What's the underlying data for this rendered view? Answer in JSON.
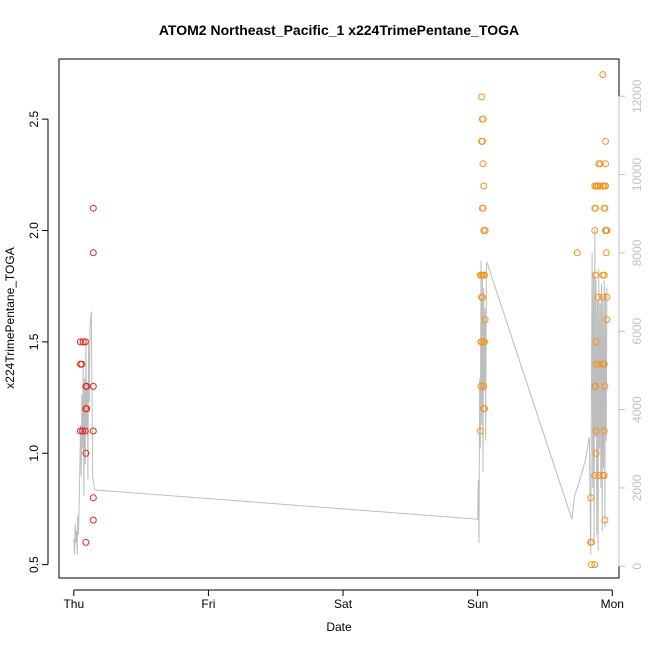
{
  "chart_data": {
    "type": "scatter",
    "title": "ATOM2 Northeast_Pacific_1 x224TrimePentane_TOGA",
    "xlabel": "Date",
    "ylabel": "x224TrimePentane_TOGA",
    "x_ticks": [
      "Thu",
      "Fri",
      "Sat",
      "Sun",
      "Mon"
    ],
    "y_ticks": [
      "0.5",
      "1.0",
      "1.5",
      "2.0",
      "2.5"
    ],
    "y2_ticks": [
      "0",
      "2000",
      "4000",
      "6000",
      "8000",
      "10000",
      "12000"
    ],
    "xlim": [
      -0.11,
      4.05
    ],
    "ylim": [
      0.44,
      2.77
    ],
    "y2lim": [
      -300,
      12950
    ],
    "grid": false,
    "colors": {
      "red": "#e8251f",
      "orange": "#f5921b",
      "line": "#bdbdbd"
    },
    "series": [
      {
        "color": "red",
        "points": [
          [
            0.05,
            1.5
          ],
          [
            0.07,
            1.5
          ],
          [
            0.05,
            1.4
          ],
          [
            0.06,
            1.4
          ],
          [
            0.05,
            1.1
          ],
          [
            0.065,
            1.1
          ],
          [
            0.085,
            1.1
          ],
          [
            0.09,
            1.3
          ],
          [
            0.095,
            1.3
          ],
          [
            0.09,
            1.2
          ],
          [
            0.095,
            1.2
          ],
          [
            0.09,
            1.0
          ],
          [
            0.09,
            0.6
          ],
          [
            0.085,
            1.5
          ],
          [
            0.145,
            2.1
          ],
          [
            0.145,
            1.9
          ],
          [
            0.145,
            1.3
          ],
          [
            0.145,
            1.1
          ],
          [
            0.145,
            0.8
          ],
          [
            0.145,
            0.7
          ]
        ]
      },
      {
        "color": "orange",
        "points": [
          [
            3.03,
            2.6
          ],
          [
            3.035,
            2.5
          ],
          [
            3.04,
            2.5
          ],
          [
            3.03,
            2.4
          ],
          [
            3.035,
            2.4
          ],
          [
            3.04,
            2.3
          ],
          [
            3.045,
            2.2
          ],
          [
            3.035,
            2.1
          ],
          [
            3.04,
            2.1
          ],
          [
            3.045,
            2.0
          ],
          [
            3.055,
            2.0
          ],
          [
            3.02,
            1.8
          ],
          [
            3.03,
            1.8
          ],
          [
            3.04,
            1.8
          ],
          [
            3.05,
            1.8
          ],
          [
            3.03,
            1.7
          ],
          [
            3.035,
            1.7
          ],
          [
            3.055,
            1.6
          ],
          [
            3.025,
            1.5
          ],
          [
            3.03,
            1.5
          ],
          [
            3.045,
            1.5
          ],
          [
            3.05,
            1.5
          ],
          [
            3.025,
            1.3
          ],
          [
            3.045,
            1.3
          ],
          [
            3.045,
            1.2
          ],
          [
            3.05,
            1.2
          ],
          [
            3.02,
            1.1
          ],
          [
            3.74,
            1.9
          ],
          [
            3.84,
            0.8
          ],
          [
            3.84,
            0.6
          ],
          [
            3.845,
            0.6
          ],
          [
            3.845,
            0.5
          ],
          [
            3.87,
            0.5
          ],
          [
            3.87,
            2.2
          ],
          [
            3.88,
            2.2
          ],
          [
            3.89,
            2.2
          ],
          [
            3.895,
            2.2
          ],
          [
            3.91,
            2.2
          ],
          [
            3.93,
            2.2
          ],
          [
            3.94,
            2.2
          ],
          [
            3.95,
            2.2
          ],
          [
            3.9,
            2.3
          ],
          [
            3.91,
            2.3
          ],
          [
            3.95,
            2.3
          ],
          [
            3.95,
            2.4
          ],
          [
            3.93,
            2.7
          ],
          [
            3.87,
            2.1
          ],
          [
            3.875,
            2.1
          ],
          [
            3.94,
            2.1
          ],
          [
            3.945,
            2.1
          ],
          [
            3.87,
            2.0
          ],
          [
            3.95,
            2.0
          ],
          [
            3.955,
            2.0
          ],
          [
            3.96,
            2.0
          ],
          [
            3.955,
            1.9
          ],
          [
            3.875,
            1.8
          ],
          [
            3.93,
            1.8
          ],
          [
            3.94,
            1.8
          ],
          [
            3.895,
            1.7
          ],
          [
            3.93,
            1.7
          ],
          [
            3.96,
            1.7
          ],
          [
            3.96,
            1.6
          ],
          [
            3.88,
            1.5
          ],
          [
            3.88,
            1.4
          ],
          [
            3.9,
            1.4
          ],
          [
            3.93,
            1.4
          ],
          [
            3.94,
            1.4
          ],
          [
            3.87,
            1.3
          ],
          [
            3.875,
            1.3
          ],
          [
            3.945,
            1.3
          ],
          [
            3.88,
            1.1
          ],
          [
            3.94,
            1.1
          ],
          [
            3.88,
            1.0
          ],
          [
            3.87,
            0.9
          ],
          [
            3.9,
            0.9
          ],
          [
            3.93,
            0.9
          ],
          [
            3.94,
            0.9
          ],
          [
            3.945,
            0.7
          ]
        ]
      }
    ],
    "right_axis_line": [
      [
        0.0,
        700
      ],
      [
        0.005,
        300
      ],
      [
        0.01,
        1100
      ],
      [
        0.015,
        600
      ],
      [
        0.02,
        900
      ],
      [
        0.025,
        300
      ],
      [
        0.03,
        1300
      ],
      [
        0.035,
        800
      ],
      [
        0.04,
        1600
      ],
      [
        0.045,
        2600
      ],
      [
        0.05,
        3600
      ],
      [
        0.055,
        2300
      ],
      [
        0.06,
        4400
      ],
      [
        0.065,
        3000
      ],
      [
        0.07,
        5200
      ],
      [
        0.075,
        1800
      ],
      [
        0.08,
        4800
      ],
      [
        0.085,
        2600
      ],
      [
        0.09,
        5700
      ],
      [
        0.095,
        3400
      ],
      [
        0.1,
        4700
      ],
      [
        0.105,
        2200
      ],
      [
        0.11,
        5800
      ],
      [
        0.115,
        4200
      ],
      [
        0.12,
        6100
      ],
      [
        0.13,
        6500
      ],
      [
        0.14,
        2300
      ],
      [
        0.155,
        1950
      ],
      [
        3.0,
        1200
      ],
      [
        3.005,
        2200
      ],
      [
        3.01,
        600
      ],
      [
        3.015,
        4800
      ],
      [
        3.02,
        3000
      ],
      [
        3.025,
        7800
      ],
      [
        3.03,
        3600
      ],
      [
        3.035,
        7400
      ],
      [
        3.04,
        2400
      ],
      [
        3.045,
        7100
      ],
      [
        3.05,
        4500
      ],
      [
        3.055,
        6600
      ],
      [
        3.06,
        3200
      ],
      [
        3.065,
        7700
      ],
      [
        3.07,
        7750
      ],
      [
        3.7,
        1200
      ],
      [
        3.72,
        1800
      ],
      [
        3.75,
        2100
      ],
      [
        3.8,
        2700
      ],
      [
        3.83,
        3300
      ],
      [
        3.84,
        300
      ],
      [
        3.85,
        8000
      ],
      [
        3.855,
        2000
      ],
      [
        3.86,
        7500
      ],
      [
        3.865,
        600
      ],
      [
        3.87,
        8600
      ],
      [
        3.875,
        3300
      ],
      [
        3.88,
        7300
      ],
      [
        3.885,
        800
      ],
      [
        3.89,
        6800
      ],
      [
        3.895,
        400
      ],
      [
        3.9,
        7600
      ],
      [
        3.905,
        3000
      ],
      [
        3.91,
        6700
      ],
      [
        3.915,
        2000
      ],
      [
        3.92,
        7200
      ],
      [
        3.925,
        900
      ],
      [
        3.93,
        6900
      ],
      [
        3.935,
        2500
      ],
      [
        3.94,
        7300
      ],
      [
        3.945,
        1000
      ],
      [
        3.95,
        7000
      ],
      [
        3.955,
        3200
      ],
      [
        3.96,
        7100
      ]
    ]
  }
}
